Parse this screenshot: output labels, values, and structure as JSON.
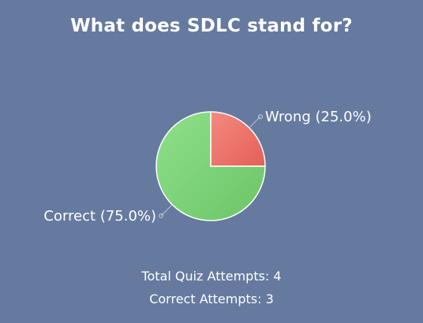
{
  "quiz": {
    "question_title": "What does SDLC stand for?",
    "total_attempts_text": "Total Quiz Attempts: 4",
    "correct_attempts_text": "Correct Attempts: 3"
  },
  "chart_data": {
    "type": "pie",
    "title": "What does SDLC stand for?",
    "slices": [
      {
        "label": "Wrong",
        "value": 25.0,
        "display": "Wrong (25.0%)",
        "color": "#ee6b62"
      },
      {
        "label": "Correct",
        "value": 75.0,
        "display": "Correct (75.0%)",
        "color": "#7fd47a"
      }
    ]
  }
}
